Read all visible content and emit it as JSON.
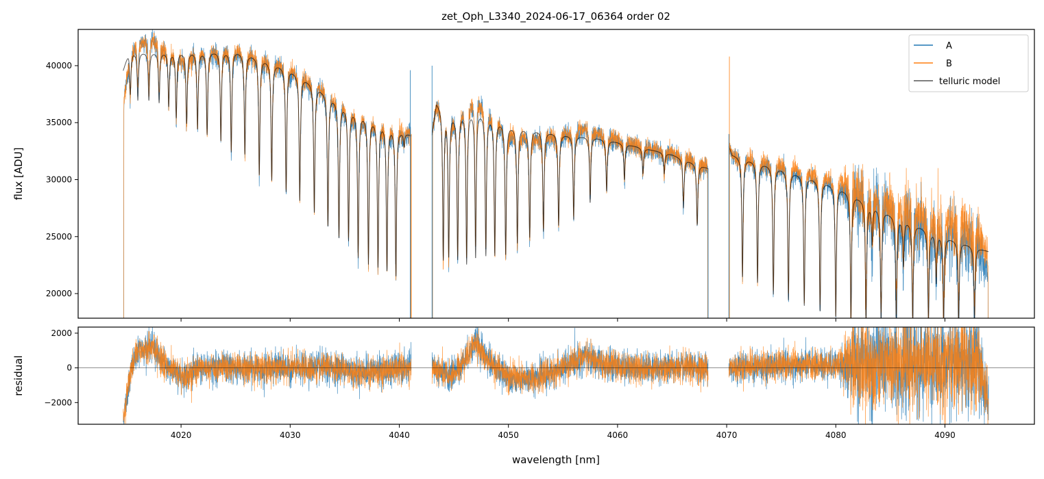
{
  "chart_data": [
    {
      "type": "line",
      "title": "zet_Oph_L3340_2024-06-17_06364  order 02",
      "xlabel": "",
      "ylabel": "flux [ADU]",
      "xlim": [
        4010.57,
        4098.2
      ],
      "ylim": [
        17840,
        43180
      ],
      "xticks": [
        4020,
        4030,
        4040,
        4050,
        4060,
        4070,
        4080,
        4090
      ],
      "xtick_labels_visible": false,
      "yticks": [
        20000,
        25000,
        30000,
        35000,
        40000
      ],
      "ytick_labels": [
        "20000",
        "25000",
        "30000",
        "35000",
        "40000"
      ],
      "legend": {
        "placement": "top-right",
        "entries": [
          "A",
          "B",
          "telluric model"
        ]
      },
      "series": [
        {
          "name": "A",
          "color": "#1f77b4"
        },
        {
          "name": "B",
          "color": "#ff7f0e"
        },
        {
          "name": "telluric model",
          "color": "#3a3a3a"
        }
      ],
      "segments": [
        {
          "range": [
            4014.7,
            4041.1
          ],
          "continuum": [
            [
              4014.7,
              39600
            ],
            [
              4015.2,
              41200
            ],
            [
              4020,
              41200
            ],
            [
              4025,
              41300
            ],
            [
              4027,
              40800
            ],
            [
              4030,
              39700
            ],
            [
              4032,
              38500
            ],
            [
              4035,
              36500
            ],
            [
              4038,
              35200
            ],
            [
              4041.1,
              33900
            ]
          ],
          "lines": [
            [
              4015.35,
              37500
            ],
            [
              4016.04,
              37000
            ],
            [
              4017.05,
              37000
            ],
            [
              4017.99,
              36800
            ],
            [
              4018.87,
              36500
            ],
            [
              4019.56,
              35500
            ],
            [
              4020.51,
              35000
            ],
            [
              4021.51,
              34500
            ],
            [
              4022.39,
              34000
            ],
            [
              4023.65,
              33500
            ],
            [
              4024.6,
              32500
            ],
            [
              4025.85,
              32300
            ],
            [
              4027.17,
              30500
            ],
            [
              4028.31,
              30000
            ],
            [
              4029.63,
              29000
            ],
            [
              4030.88,
              28200
            ],
            [
              4032.21,
              27200
            ],
            [
              4033.46,
              26000
            ],
            [
              4034.47,
              25000
            ],
            [
              4035.35,
              24800
            ],
            [
              4036.23,
              23300
            ],
            [
              4037.17,
              22700
            ],
            [
              4038.05,
              22500
            ],
            [
              4038.87,
              22200
            ],
            [
              4039.69,
              21600
            ],
            [
              4040.44,
              33000
            ]
          ],
          "B_offset": 300
        },
        {
          "range": [
            4043.0,
            4068.3
          ],
          "continuum": [
            [
              4043.0,
              34000
            ],
            [
              4043.4,
              36800
            ],
            [
              4045,
              35800
            ],
            [
              4047,
              36200
            ],
            [
              4050,
              34800
            ],
            [
              4055,
              34000
            ],
            [
              4058,
              33700
            ],
            [
              4060,
              33300
            ],
            [
              4065,
              32200
            ],
            [
              4068.3,
              31000
            ]
          ],
          "lines": [
            [
              4044.03,
              23200
            ],
            [
              4044.53,
              23500
            ],
            [
              4045.35,
              23200
            ],
            [
              4046.17,
              22800
            ],
            [
              4046.99,
              23300
            ],
            [
              4047.93,
              23500
            ],
            [
              4048.75,
              23500
            ],
            [
              4049.75,
              23500
            ],
            [
              4050.82,
              24500
            ],
            [
              4051.95,
              25000
            ],
            [
              4053.21,
              25500
            ],
            [
              4054.6,
              26000
            ],
            [
              4055.98,
              26500
            ],
            [
              4057.49,
              28000
            ],
            [
              4059.0,
              29000
            ],
            [
              4060.63,
              30000
            ],
            [
              4062.33,
              30500
            ],
            [
              4064.28,
              30500
            ],
            [
              4066.04,
              27500
            ],
            [
              4067.3,
              26000
            ]
          ],
          "B_offset": 200
        },
        {
          "range": [
            4070.2,
            4094.0
          ],
          "continuum": [
            [
              4070.2,
              33000
            ],
            [
              4070.5,
              32200
            ],
            [
              4075,
              31000
            ],
            [
              4080,
              29500
            ],
            [
              4085,
              27000
            ],
            [
              4090,
              25000
            ],
            [
              4094.0,
              23700
            ]
          ],
          "lines": [
            [
              4071.45,
              21500
            ],
            [
              4072.83,
              21000
            ],
            [
              4074.28,
              20000
            ],
            [
              4075.66,
              19500
            ],
            [
              4077.11,
              19000
            ],
            [
              4078.56,
              18500
            ],
            [
              4080.0,
              18000
            ],
            [
              4081.39,
              17800
            ],
            [
              4082.77,
              17500
            ],
            [
              4083.33,
              24500
            ],
            [
              4084.15,
              17500
            ],
            [
              4085.54,
              17500
            ],
            [
              4086.2,
              22500
            ],
            [
              4087.05,
              17500
            ],
            [
              4088.49,
              17500
            ],
            [
              4089.2,
              21000
            ],
            [
              4089.88,
              17500
            ],
            [
              4091.26,
              17500
            ],
            [
              4092.71,
              17500
            ]
          ],
          "B_offset": 1200
        }
      ]
    },
    {
      "type": "line",
      "xlabel": "wavelength [nm]",
      "ylabel": "residual",
      "xlim": [
        4010.57,
        4098.2
      ],
      "ylim": [
        -3250,
        2350
      ],
      "xticks": [
        4020,
        4030,
        4040,
        4050,
        4060,
        4070,
        4080,
        4090
      ],
      "xtick_labels": [
        "4020",
        "4030",
        "4040",
        "4050",
        "4060",
        "4070",
        "4080",
        "4090"
      ],
      "yticks": [
        -2000,
        0,
        2000
      ],
      "ytick_labels": [
        "−2000",
        "0",
        "2000"
      ],
      "reference_line": 0,
      "residual_trend": [
        [
          4014.7,
          -3000
        ],
        [
          4015.3,
          -500
        ],
        [
          4016,
          1000
        ],
        [
          4017.5,
          1200
        ],
        [
          4018.5,
          200
        ],
        [
          4020,
          -500
        ],
        [
          4021,
          -300
        ],
        [
          4022,
          0
        ],
        [
          4035,
          0
        ],
        [
          4036,
          -300
        ],
        [
          4041,
          0
        ],
        [
          4043.2,
          0
        ],
        [
          4044.5,
          -500
        ],
        [
          4045.5,
          0
        ],
        [
          4047,
          1500
        ],
        [
          4048,
          500
        ],
        [
          4049.5,
          -300
        ],
        [
          4051,
          -700
        ],
        [
          4053,
          -500
        ],
        [
          4055,
          0
        ],
        [
          4057,
          700
        ],
        [
          4058.5,
          200
        ],
        [
          4062,
          0
        ],
        [
          4068,
          0
        ],
        [
          4070.3,
          0
        ],
        [
          4072,
          100
        ],
        [
          4081,
          200
        ],
        [
          4093,
          300
        ],
        [
          4094,
          -1800
        ]
      ],
      "noise_std": [
        [
          4010,
          450
        ],
        [
          4080.5,
          450
        ],
        [
          4081.5,
          1400
        ],
        [
          4093,
          1400
        ],
        [
          4094,
          700
        ]
      ]
    }
  ]
}
